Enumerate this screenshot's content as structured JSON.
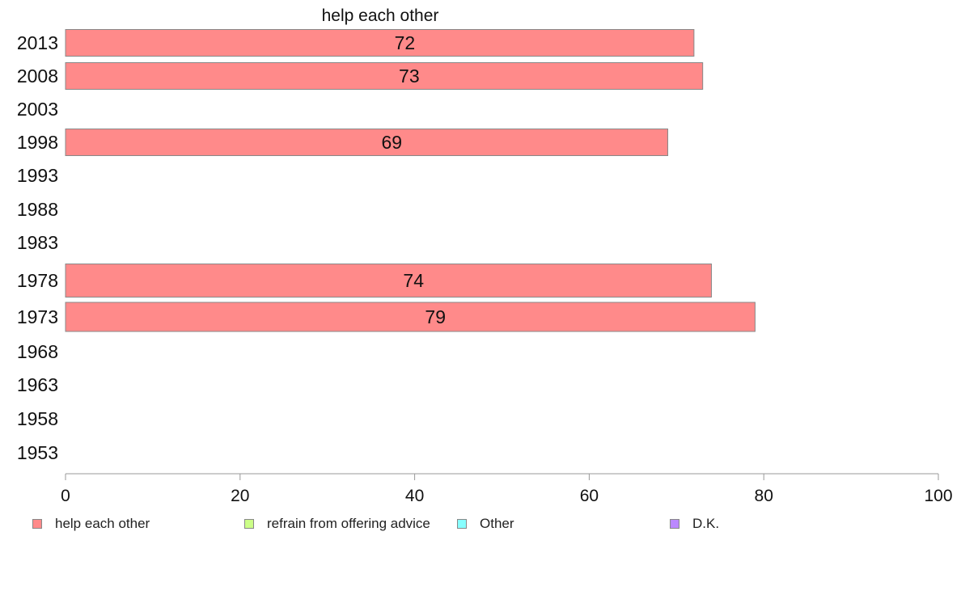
{
  "chart_data": {
    "type": "bar",
    "orientation": "horizontal",
    "title": "help each other",
    "categories": [
      "2013",
      "2008",
      "2003",
      "1998",
      "1993",
      "1988",
      "1983",
      "1978",
      "1973",
      "1968",
      "1963",
      "1958",
      "1953"
    ],
    "series": [
      {
        "name": "help each other",
        "color": "#FF8A8A",
        "values": [
          72,
          73,
          null,
          69,
          null,
          null,
          null,
          74,
          79,
          null,
          null,
          null,
          null
        ]
      }
    ],
    "xlim": [
      0,
      100
    ],
    "xticks": [
      "0",
      "20",
      "40",
      "60",
      "80",
      "100"
    ],
    "grid": false,
    "legend_position": "bottom",
    "legend": [
      {
        "name": "help each other",
        "color": "#FF8A8A"
      },
      {
        "name": "refrain from offering advice",
        "color": "#CCFF88"
      },
      {
        "name": "Other",
        "color": "#88FFFF"
      },
      {
        "name": "D.K.",
        "color": "#BB88FF"
      }
    ]
  }
}
